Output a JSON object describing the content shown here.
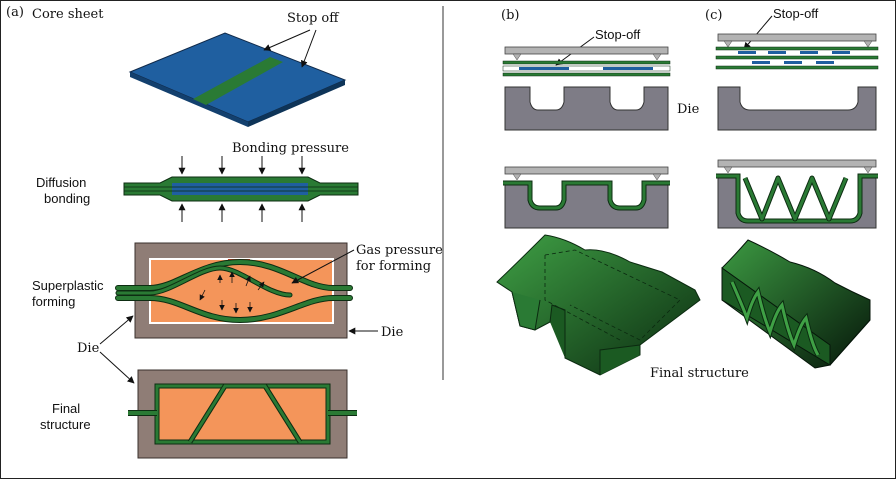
{
  "panel_a": {
    "tag": "(a)",
    "core_sheet": "Core  sheet",
    "stop_off": "Stop  off",
    "bonding_pressure": "Bonding  pressure",
    "diffusion_1": "Diffusion",
    "diffusion_2": "bonding",
    "superplastic_1": "Superplastic",
    "superplastic_2": "forming",
    "gas_1": "Gas  pressure",
    "gas_2": "for  forming",
    "die_left": "Die",
    "die_right": "Die",
    "final_1": "Final",
    "final_2": "structure"
  },
  "panel_b": {
    "tag": "(b)",
    "stop_off": "Stop-off",
    "die": "Die"
  },
  "panel_c": {
    "tag": "(c)",
    "stop_off": "Stop-off"
  },
  "final_structure": "Final  structure",
  "colors": {
    "sheet_blue": "#1f5fa0",
    "sheet_green": "#2a7a34",
    "die_brown": "#8f7d76",
    "cavity_orange": "#f4955a",
    "plate_grey": "#b3b3b3",
    "die_grey": "#7e7c86"
  }
}
